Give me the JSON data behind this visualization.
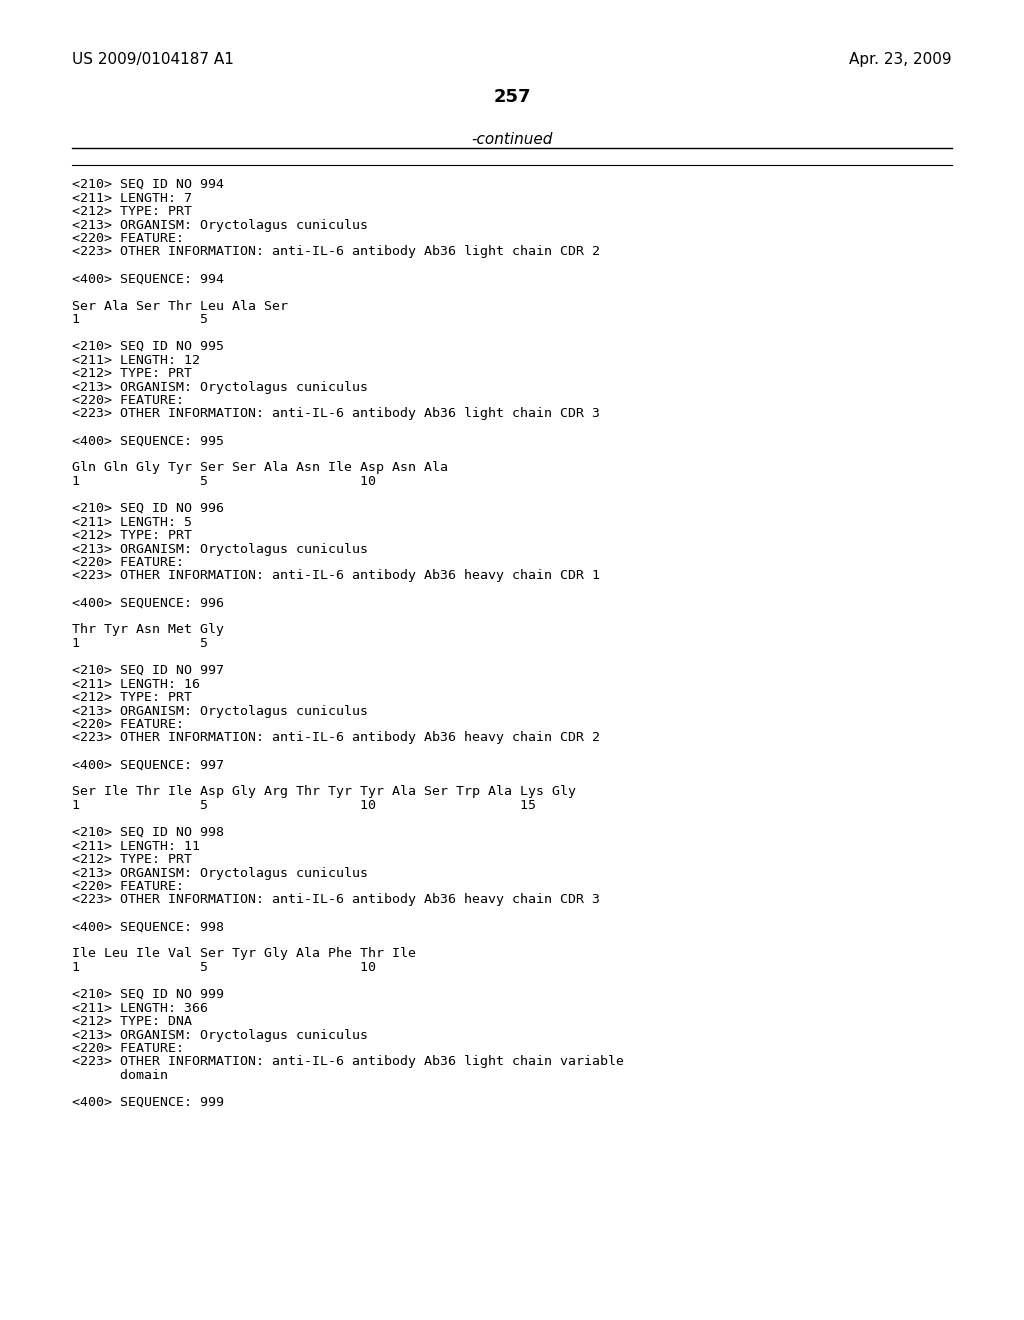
{
  "bg_color": "#ffffff",
  "header_left": "US 2009/0104187 A1",
  "header_right": "Apr. 23, 2009",
  "page_number": "257",
  "continued_text": "-continued",
  "line_color": "#000000",
  "font_color": "#000000",
  "mono_font": "DejaVu Sans Mono",
  "prop_font": "DejaVu Sans",
  "content": [
    "<210> SEQ ID NO 994",
    "<211> LENGTH: 7",
    "<212> TYPE: PRT",
    "<213> ORGANISM: Oryctolagus cuniculus",
    "<220> FEATURE:",
    "<223> OTHER INFORMATION: anti-IL-6 antibody Ab36 light chain CDR 2",
    "",
    "<400> SEQUENCE: 994",
    "",
    "Ser Ala Ser Thr Leu Ala Ser",
    "1               5",
    "",
    "<210> SEQ ID NO 995",
    "<211> LENGTH: 12",
    "<212> TYPE: PRT",
    "<213> ORGANISM: Oryctolagus cuniculus",
    "<220> FEATURE:",
    "<223> OTHER INFORMATION: anti-IL-6 antibody Ab36 light chain CDR 3",
    "",
    "<400> SEQUENCE: 995",
    "",
    "Gln Gln Gly Tyr Ser Ser Ala Asn Ile Asp Asn Ala",
    "1               5                   10",
    "",
    "<210> SEQ ID NO 996",
    "<211> LENGTH: 5",
    "<212> TYPE: PRT",
    "<213> ORGANISM: Oryctolagus cuniculus",
    "<220> FEATURE:",
    "<223> OTHER INFORMATION: anti-IL-6 antibody Ab36 heavy chain CDR 1",
    "",
    "<400> SEQUENCE: 996",
    "",
    "Thr Tyr Asn Met Gly",
    "1               5",
    "",
    "<210> SEQ ID NO 997",
    "<211> LENGTH: 16",
    "<212> TYPE: PRT",
    "<213> ORGANISM: Oryctolagus cuniculus",
    "<220> FEATURE:",
    "<223> OTHER INFORMATION: anti-IL-6 antibody Ab36 heavy chain CDR 2",
    "",
    "<400> SEQUENCE: 997",
    "",
    "Ser Ile Thr Ile Asp Gly Arg Thr Tyr Tyr Ala Ser Trp Ala Lys Gly",
    "1               5                   10                  15",
    "",
    "<210> SEQ ID NO 998",
    "<211> LENGTH: 11",
    "<212> TYPE: PRT",
    "<213> ORGANISM: Oryctolagus cuniculus",
    "<220> FEATURE:",
    "<223> OTHER INFORMATION: anti-IL-6 antibody Ab36 heavy chain CDR 3",
    "",
    "<400> SEQUENCE: 998",
    "",
    "Ile Leu Ile Val Ser Tyr Gly Ala Phe Thr Ile",
    "1               5                   10",
    "",
    "<210> SEQ ID NO 999",
    "<211> LENGTH: 366",
    "<212> TYPE: DNA",
    "<213> ORGANISM: Oryctolagus cuniculus",
    "<220> FEATURE:",
    "<223> OTHER INFORMATION: anti-IL-6 antibody Ab36 light chain variable",
    "      domain",
    "",
    "<400> SEQUENCE: 999"
  ]
}
